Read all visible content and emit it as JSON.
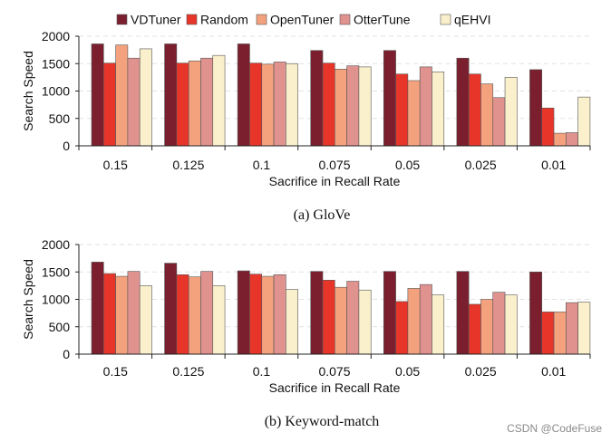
{
  "legend": [
    {
      "name": "VDTuner",
      "color": "#7b1f2e"
    },
    {
      "name": "Random",
      "color": "#e8352a"
    },
    {
      "name": "OpenTuner",
      "color": "#f4a27e"
    },
    {
      "name": "OtterTune",
      "color": "#e0928f"
    },
    {
      "name": "qEHVI",
      "color": "#fbf0cc"
    }
  ],
  "watermark": "CSDN @CodeFuse",
  "chart_data": [
    {
      "type": "bar",
      "title": "",
      "caption": "(a)  GloVe",
      "xlabel": "Sacrifice in Recall Rate",
      "ylabel": "Search Speed",
      "ylim": [
        0,
        2000
      ],
      "yticks": [
        0,
        500,
        1000,
        1500,
        2000
      ],
      "categories": [
        "0.15",
        "0.125",
        "0.1",
        "0.075",
        "0.05",
        "0.025",
        "0.01"
      ],
      "series": [
        {
          "name": "VDTuner",
          "values": [
            1860,
            1860,
            1860,
            1740,
            1740,
            1600,
            1390
          ]
        },
        {
          "name": "Random",
          "values": [
            1510,
            1510,
            1510,
            1510,
            1310,
            1310,
            690
          ]
        },
        {
          "name": "OpenTuner",
          "values": [
            1840,
            1550,
            1490,
            1400,
            1190,
            1130,
            230
          ]
        },
        {
          "name": "OtterTune",
          "values": [
            1600,
            1600,
            1530,
            1460,
            1440,
            880,
            240
          ]
        },
        {
          "name": "qEHVI",
          "values": [
            1770,
            1650,
            1500,
            1440,
            1350,
            1250,
            890
          ]
        }
      ]
    },
    {
      "type": "bar",
      "title": "",
      "caption": "(b)  Keyword-match",
      "xlabel": "Sacrifice in Recall Rate",
      "ylabel": "Search Speed",
      "ylim": [
        0,
        2000
      ],
      "yticks": [
        0,
        500,
        1000,
        1500,
        2000
      ],
      "categories": [
        "0.15",
        "0.125",
        "0.1",
        "0.075",
        "0.05",
        "0.025",
        "0.01"
      ],
      "series": [
        {
          "name": "VDTuner",
          "values": [
            1680,
            1660,
            1520,
            1510,
            1510,
            1510,
            1500
          ]
        },
        {
          "name": "Random",
          "values": [
            1470,
            1450,
            1460,
            1350,
            960,
            910,
            770
          ]
        },
        {
          "name": "OpenTuner",
          "values": [
            1420,
            1410,
            1420,
            1220,
            1200,
            1000,
            770
          ]
        },
        {
          "name": "OtterTune",
          "values": [
            1510,
            1510,
            1450,
            1330,
            1270,
            1130,
            940
          ]
        },
        {
          "name": "qEHVI",
          "values": [
            1250,
            1250,
            1180,
            1170,
            1080,
            1080,
            950
          ]
        }
      ]
    }
  ]
}
